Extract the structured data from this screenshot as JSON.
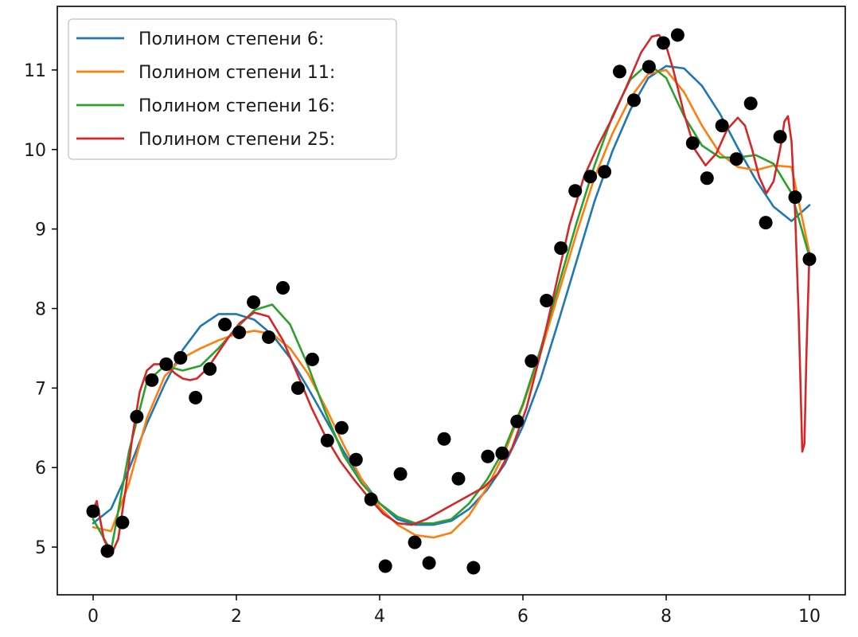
{
  "chart_data": {
    "type": "scatter",
    "title": "",
    "xlabel": "",
    "ylabel": "",
    "xlim": [
      -0.5,
      10.5
    ],
    "ylim": [
      4.4,
      11.8
    ],
    "x_ticks": [
      0,
      2,
      4,
      6,
      8,
      10
    ],
    "y_ticks": [
      5,
      6,
      7,
      8,
      9,
      10,
      11
    ],
    "grid": false,
    "legend_position": "upper-left",
    "points": {
      "color": "#000000",
      "x": [
        0.0,
        0.2,
        0.41,
        0.61,
        0.82,
        1.02,
        1.22,
        1.43,
        1.63,
        1.84,
        2.04,
        2.24,
        2.45,
        2.65,
        2.86,
        3.06,
        3.27,
        3.47,
        3.67,
        3.88,
        4.08,
        4.29,
        4.49,
        4.69,
        4.9,
        5.1,
        5.31,
        5.51,
        5.71,
        5.92,
        6.12,
        6.33,
        6.53,
        6.73,
        6.94,
        7.14,
        7.35,
        7.55,
        7.76,
        7.96,
        8.16,
        8.37,
        8.57,
        8.78,
        8.98,
        9.18,
        9.39,
        9.59,
        9.8,
        10.0
      ],
      "y": [
        5.45,
        4.95,
        5.31,
        6.64,
        7.1,
        7.3,
        7.38,
        6.88,
        7.24,
        7.8,
        7.7,
        8.08,
        7.64,
        8.26,
        7.0,
        7.36,
        6.34,
        6.5,
        6.1,
        5.6,
        4.76,
        5.92,
        5.06,
        4.8,
        6.36,
        5.86,
        4.74,
        6.14,
        6.18,
        6.58,
        7.34,
        8.1,
        8.76,
        9.48,
        9.66,
        9.72,
        10.98,
        10.62,
        11.04,
        11.34,
        11.44,
        10.08,
        9.64,
        10.3,
        9.88,
        10.58,
        9.08,
        10.16,
        9.4,
        8.62
      ]
    },
    "series": [
      {
        "name": "Полином степени 6:",
        "color": "#1f77b4",
        "x": [
          0,
          0.25,
          0.5,
          0.75,
          1.0,
          1.25,
          1.5,
          1.75,
          2.0,
          2.25,
          2.5,
          2.75,
          3.0,
          3.25,
          3.5,
          3.75,
          4.0,
          4.25,
          4.5,
          4.75,
          5.0,
          5.25,
          5.5,
          5.75,
          6.0,
          6.25,
          6.5,
          6.75,
          7.0,
          7.25,
          7.5,
          7.75,
          8.0,
          8.25,
          8.5,
          8.75,
          9.0,
          9.25,
          9.5,
          9.75,
          10.0
        ],
        "y": [
          5.3,
          5.48,
          5.98,
          6.55,
          7.05,
          7.48,
          7.78,
          7.93,
          7.93,
          7.86,
          7.67,
          7.38,
          7.0,
          6.6,
          6.2,
          5.85,
          5.55,
          5.35,
          5.28,
          5.28,
          5.33,
          5.48,
          5.72,
          6.05,
          6.52,
          7.12,
          7.85,
          8.6,
          9.35,
          9.98,
          10.5,
          10.9,
          11.05,
          11.02,
          10.8,
          10.45,
          10.02,
          9.62,
          9.28,
          9.1,
          9.3
        ]
      },
      {
        "name": "Полином степени 11:",
        "color": "#ff7f0e",
        "x": [
          0,
          0.25,
          0.5,
          0.75,
          1.0,
          1.25,
          1.5,
          1.75,
          2.0,
          2.25,
          2.5,
          2.75,
          3.0,
          3.25,
          3.5,
          3.75,
          4.0,
          4.25,
          4.5,
          4.75,
          5.0,
          5.25,
          5.5,
          5.75,
          6.0,
          6.25,
          6.5,
          6.75,
          7.0,
          7.25,
          7.5,
          7.75,
          8.0,
          8.25,
          8.5,
          8.75,
          9.0,
          9.25,
          9.5,
          9.75,
          10.0
        ],
        "y": [
          5.25,
          5.2,
          5.8,
          6.62,
          7.15,
          7.38,
          7.5,
          7.6,
          7.68,
          7.72,
          7.68,
          7.5,
          7.18,
          6.75,
          6.28,
          5.85,
          5.5,
          5.28,
          5.15,
          5.12,
          5.18,
          5.4,
          5.75,
          6.2,
          6.78,
          7.45,
          8.2,
          8.95,
          9.65,
          10.2,
          10.65,
          10.95,
          11.0,
          10.72,
          10.3,
          9.95,
          9.78,
          9.74,
          9.8,
          9.78,
          8.7
        ]
      },
      {
        "name": "Полином степени 16:",
        "color": "#2ca02c",
        "x": [
          0,
          0.25,
          0.5,
          0.75,
          1.0,
          1.25,
          1.5,
          1.75,
          2.0,
          2.25,
          2.5,
          2.75,
          3.0,
          3.25,
          3.5,
          3.75,
          4.0,
          4.25,
          4.5,
          4.75,
          5.0,
          5.25,
          5.5,
          5.75,
          6.0,
          6.25,
          6.5,
          6.75,
          7.0,
          7.25,
          7.5,
          7.75,
          8.0,
          8.25,
          8.5,
          8.75,
          9.0,
          9.25,
          9.5,
          9.75,
          10.0
        ],
        "y": [
          5.35,
          4.95,
          6.2,
          7.08,
          7.28,
          7.22,
          7.28,
          7.5,
          7.75,
          7.98,
          8.05,
          7.8,
          7.28,
          6.68,
          6.15,
          5.8,
          5.55,
          5.38,
          5.3,
          5.3,
          5.35,
          5.55,
          5.85,
          6.25,
          6.8,
          7.5,
          8.3,
          9.08,
          9.8,
          10.42,
          10.88,
          11.08,
          10.9,
          10.42,
          10.05,
          9.9,
          9.9,
          9.93,
          9.82,
          9.45,
          8.65
        ]
      },
      {
        "name": "Полином степени 25:",
        "color": "#d62728",
        "x": [
          0,
          0.05,
          0.15,
          0.25,
          0.35,
          0.45,
          0.55,
          0.65,
          0.75,
          0.85,
          0.95,
          1.05,
          1.15,
          1.25,
          1.35,
          1.45,
          1.6,
          1.75,
          1.9,
          2.05,
          2.25,
          2.45,
          2.65,
          2.85,
          3.05,
          3.25,
          3.45,
          3.65,
          3.85,
          4.05,
          4.25,
          4.45,
          4.65,
          4.85,
          5.05,
          5.25,
          5.45,
          5.65,
          5.85,
          6.05,
          6.25,
          6.45,
          6.65,
          6.85,
          7.05,
          7.25,
          7.45,
          7.65,
          7.8,
          7.9,
          8.0,
          8.1,
          8.25,
          8.4,
          8.55,
          8.7,
          8.85,
          9.0,
          9.1,
          9.2,
          9.3,
          9.4,
          9.5,
          9.6,
          9.65,
          9.7,
          9.75,
          9.8,
          9.85,
          9.9,
          9.93,
          9.96,
          10.0
        ],
        "y": [
          5.45,
          5.58,
          5.1,
          4.9,
          5.1,
          5.7,
          6.4,
          6.95,
          7.22,
          7.3,
          7.3,
          7.26,
          7.18,
          7.12,
          7.1,
          7.12,
          7.25,
          7.45,
          7.65,
          7.82,
          7.95,
          7.9,
          7.6,
          7.18,
          6.75,
          6.38,
          6.08,
          5.84,
          5.62,
          5.42,
          5.3,
          5.28,
          5.35,
          5.45,
          5.55,
          5.65,
          5.75,
          5.92,
          6.25,
          6.75,
          7.45,
          8.25,
          9.05,
          9.65,
          10.05,
          10.4,
          10.8,
          11.22,
          11.42,
          11.44,
          11.3,
          11.0,
          10.45,
          10.0,
          9.8,
          9.95,
          10.25,
          10.4,
          10.3,
          10.0,
          9.65,
          9.45,
          9.6,
          10.05,
          10.35,
          10.42,
          10.1,
          9.2,
          7.9,
          6.2,
          6.3,
          7.5,
          8.7
        ]
      }
    ]
  }
}
